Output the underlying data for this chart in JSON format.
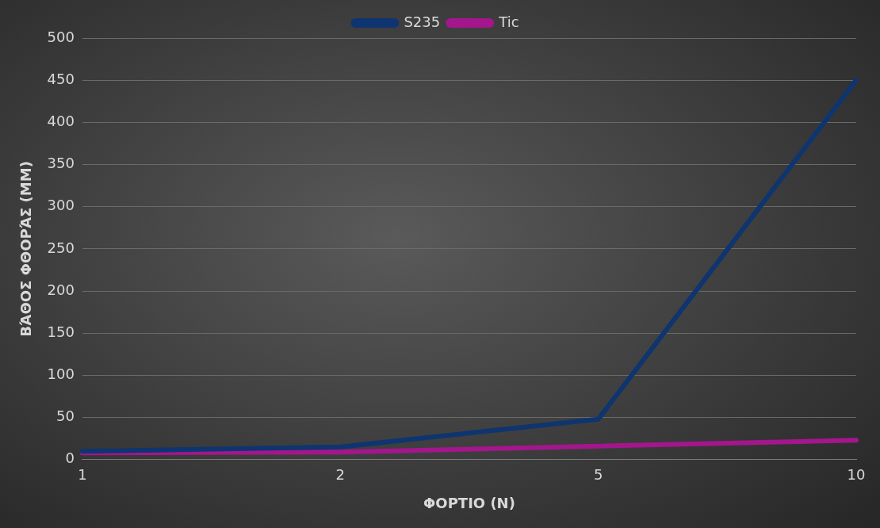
{
  "chart_data": {
    "type": "line",
    "xlabel": "ΦΟΡΤΙΟ (N)",
    "ylabel": "ΒΆΘΟΣ ΦΘΟΡΆΣ (ΜΜ)",
    "categories": [
      "1",
      "2",
      "5",
      "10"
    ],
    "series": [
      {
        "name": "S235",
        "color": "#0e3570",
        "values": [
          10,
          15,
          48,
          450
        ]
      },
      {
        "name": "Tic",
        "color": "#a3168c",
        "values": [
          8,
          9,
          16,
          23
        ]
      }
    ],
    "ylim": [
      0,
      500
    ],
    "yticks": [
      0,
      50,
      100,
      150,
      200,
      250,
      300,
      350,
      400,
      450,
      500
    ],
    "grid": "y",
    "legend": "top",
    "marker": "none",
    "line_style": "solid"
  }
}
